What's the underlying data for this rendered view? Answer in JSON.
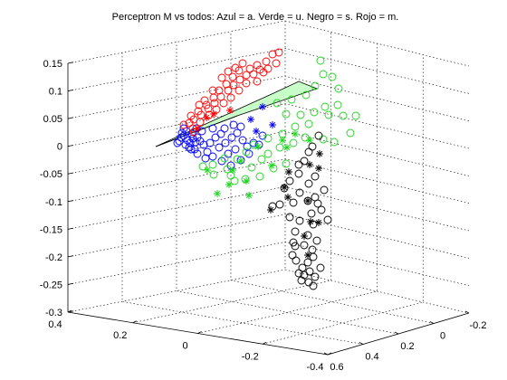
{
  "chart_data": {
    "type": "scatter",
    "projection": "3d",
    "title": "Perceptron M vs todos: Azul = a. Verde = u. Negro = s. Rojo = m.",
    "xlabel": "",
    "ylabel": "",
    "zlabel": "",
    "grid": true,
    "legend": "none",
    "z_ticks": [
      "-0.3",
      "-0.25",
      "-0.2",
      "-0.15",
      "-0.1",
      "-0.05",
      "0",
      "0.05",
      "0.1",
      "0.15"
    ],
    "zlim": [
      -0.3,
      0.15
    ],
    "front_left_axis_ticks": [
      "0.4",
      "0.2",
      "0",
      "-0.2",
      "-0.4"
    ],
    "front_left_axis_range": [
      0.4,
      -0.4
    ],
    "front_right_axis_ticks": [
      "0.6",
      "0.4",
      "0.2",
      "0",
      "-0.2"
    ],
    "front_right_axis_range": [
      0.6,
      -0.2
    ],
    "decision_plane_color": "#c8ffc8",
    "series": [
      {
        "name": "Azul = a",
        "color": "#0000ff",
        "circles": [
          [
            203,
            150
          ],
          [
            207,
            155
          ],
          [
            210,
            158
          ],
          [
            200,
            152
          ],
          [
            205,
            160
          ],
          [
            213,
            153
          ],
          [
            216,
            157
          ],
          [
            209,
            163
          ],
          [
            198,
            156
          ],
          [
            212,
            148
          ],
          [
            218,
            152
          ],
          [
            221,
            156
          ],
          [
            206,
            145
          ],
          [
            201,
            147
          ],
          [
            215,
            165
          ],
          [
            225,
            160
          ],
          [
            232,
            158
          ],
          [
            238,
            152
          ],
          [
            244,
            148
          ],
          [
            229,
            168
          ],
          [
            218,
            170
          ],
          [
            211,
            165
          ],
          [
            196,
            158
          ],
          [
            223,
            145
          ],
          [
            242,
            163
          ],
          [
            235,
            173
          ],
          [
            249,
            158
          ],
          [
            256,
            152
          ],
          [
            262,
            147
          ],
          [
            268,
            155
          ],
          [
            260,
            165
          ],
          [
            273,
            162
          ],
          [
            280,
            158
          ],
          [
            252,
            170
          ],
          [
            245,
            178
          ],
          [
            227,
            175
          ],
          [
            203,
            142
          ],
          [
            217,
            142
          ],
          [
            248,
            142
          ],
          [
            258,
            138
          ],
          [
            266,
            140
          ],
          [
            235,
            142
          ],
          [
            290,
            150
          ],
          [
            286,
            160
          ],
          [
            275,
            170
          ],
          [
            266,
            177
          ],
          [
            255,
            183
          ]
        ],
        "stars": [
          [
            290,
            118
          ],
          [
            277,
            132
          ],
          [
            301,
            138
          ],
          [
            283,
            145
          ]
        ]
      },
      {
        "name": "Verde = u",
        "color": "#1fd51f",
        "circles": [
          [
            357,
            82
          ],
          [
            348,
            95
          ],
          [
            338,
            105
          ],
          [
            322,
            110
          ],
          [
            306,
            114
          ],
          [
            316,
            126
          ],
          [
            332,
            127
          ],
          [
            347,
            124
          ],
          [
            359,
            118
          ],
          [
            341,
            137
          ],
          [
            326,
            140
          ],
          [
            312,
            148
          ],
          [
            296,
            153
          ],
          [
            280,
            160
          ],
          [
            296,
            170
          ],
          [
            309,
            163
          ],
          [
            324,
            158
          ],
          [
            337,
            152
          ],
          [
            363,
            127
          ],
          [
            379,
            128
          ],
          [
            393,
            128
          ],
          [
            373,
            116
          ],
          [
            387,
            147
          ],
          [
            369,
            157
          ],
          [
            357,
            154
          ],
          [
            272,
            168
          ],
          [
            262,
            176
          ],
          [
            248,
            175
          ],
          [
            235,
            182
          ],
          [
            224,
            184
          ],
          [
            236,
            193
          ],
          [
            251,
            187
          ],
          [
            259,
            200
          ],
          [
            278,
            185
          ],
          [
            289,
            176
          ],
          [
            302,
            186
          ],
          [
            316,
            181
          ],
          [
            287,
            195
          ],
          [
            271,
            198
          ],
          [
            354,
            67
          ],
          [
            367,
            85
          ],
          [
            374,
            98
          ],
          [
            255,
            194
          ]
        ],
        "stars": [
          [
            257,
            188
          ],
          [
            312,
            155
          ],
          [
            326,
            148
          ],
          [
            342,
            155
          ],
          [
            229,
            188
          ],
          [
            272,
            200
          ],
          [
            300,
            183
          ],
          [
            317,
            163
          ],
          [
            253,
            204
          ],
          [
            240,
            214
          ],
          [
            275,
            216
          ],
          [
            266,
            178
          ],
          [
            285,
            162
          ]
        ]
      },
      {
        "name": "Negro = s",
        "color": "#000000",
        "circles": [
          [
            352,
            150
          ],
          [
            345,
            162
          ],
          [
            341,
            168
          ],
          [
            336,
            178
          ],
          [
            330,
            192
          ],
          [
            320,
            200
          ],
          [
            314,
            208
          ],
          [
            331,
            213
          ],
          [
            340,
            222
          ],
          [
            348,
            218
          ],
          [
            355,
            232
          ],
          [
            344,
            236
          ],
          [
            331,
            244
          ],
          [
            320,
            240
          ],
          [
            326,
            256
          ],
          [
            340,
            260
          ],
          [
            346,
            248
          ],
          [
            350,
            266
          ],
          [
            336,
            271
          ],
          [
            326,
            272
          ],
          [
            323,
            282
          ],
          [
            327,
            288
          ],
          [
            334,
            296
          ],
          [
            340,
            290
          ],
          [
            346,
            284
          ],
          [
            342,
            300
          ],
          [
            336,
            304
          ],
          [
            330,
            302
          ],
          [
            324,
            268
          ],
          [
            345,
            276
          ],
          [
            333,
            310
          ],
          [
            341,
            312
          ],
          [
            348,
            306
          ],
          [
            354,
            296
          ],
          [
            351,
            225
          ],
          [
            341,
            203
          ],
          [
            324,
            224
          ],
          [
            309,
            226
          ],
          [
            301,
            228
          ],
          [
            358,
            210
          ],
          [
            362,
            243
          ],
          [
            330,
            182
          ],
          [
            348,
            195
          ],
          [
            346,
            316
          ]
        ],
        "stars": [
          [
            342,
            182
          ],
          [
            319,
            190
          ],
          [
            314,
            207
          ],
          [
            318,
            218
          ],
          [
            299,
            232
          ],
          [
            340,
            222
          ],
          [
            343,
            245
          ],
          [
            336,
            261
          ],
          [
            352,
            246
          ],
          [
            352,
            186
          ],
          [
            353,
            170
          ],
          [
            340,
            282
          ]
        ]
      },
      {
        "name": "Rojo = m",
        "color": "#ff0000",
        "circles": [
          [
            301,
            60
          ],
          [
            294,
            68
          ],
          [
            287,
            77
          ],
          [
            280,
            82
          ],
          [
            272,
            83
          ],
          [
            265,
            88
          ],
          [
            258,
            94
          ],
          [
            252,
            100
          ],
          [
            244,
            107
          ],
          [
            237,
            114
          ],
          [
            230,
            120
          ],
          [
            222,
            127
          ],
          [
            214,
            132
          ],
          [
            209,
            136
          ],
          [
            203,
            138
          ],
          [
            211,
            128
          ],
          [
            219,
            123
          ],
          [
            228,
            116
          ],
          [
            236,
            108
          ],
          [
            242,
            100
          ],
          [
            250,
            93
          ],
          [
            257,
            85
          ],
          [
            264,
            78
          ],
          [
            276,
            76
          ],
          [
            284,
            72
          ],
          [
            291,
            80
          ],
          [
            272,
            92
          ],
          [
            264,
            100
          ],
          [
            255,
            108
          ],
          [
            247,
            114
          ],
          [
            239,
            121
          ],
          [
            231,
            127
          ],
          [
            221,
            135
          ],
          [
            213,
            142
          ],
          [
            284,
            90
          ],
          [
            296,
            76
          ],
          [
            305,
            70
          ],
          [
            245,
            86
          ],
          [
            235,
            100
          ],
          [
            226,
            111
          ],
          [
            220,
            116
          ],
          [
            260,
            75
          ],
          [
            268,
            70
          ],
          [
            252,
            79
          ],
          [
            308,
            58
          ],
          [
            214,
            146
          ]
        ],
        "stars": [
          [
            228,
            130
          ],
          [
            236,
            126
          ],
          [
            254,
            122
          ],
          [
            218,
            142
          ]
        ]
      }
    ]
  }
}
